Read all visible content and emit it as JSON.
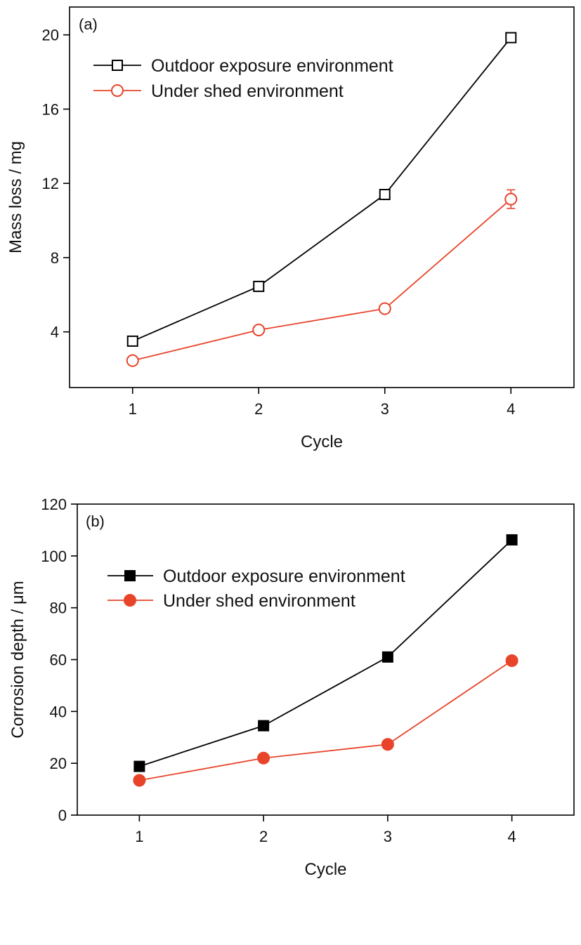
{
  "chart_data": [
    {
      "type": "line",
      "panel_label": "(a)",
      "xlabel": "Cycle",
      "ylabel": "Mass loss / mg",
      "x": [
        1,
        2,
        3,
        4
      ],
      "xticks": [
        "1",
        "2",
        "3",
        "4"
      ],
      "xlim": [
        0.5,
        4.5
      ],
      "ylim": [
        1,
        21.5
      ],
      "yticks": [
        "4",
        "8",
        "12",
        "16",
        "20"
      ],
      "yticks_values": [
        4,
        8,
        12,
        16,
        20
      ],
      "grid": false,
      "legend_position": "top-left",
      "series": [
        {
          "name": "Outdoor exposure environment",
          "values": [
            3.5,
            6.45,
            11.4,
            19.85
          ],
          "errors": [
            0.25,
            0.2,
            0.25,
            0.2
          ],
          "color": "#000000",
          "marker": "square",
          "marker_filled": false
        },
        {
          "name": "Under shed environment",
          "values": [
            2.45,
            4.1,
            5.25,
            11.15
          ],
          "errors": [
            0.2,
            0.2,
            0.2,
            0.5
          ],
          "color": "#e8442a",
          "marker": "circle",
          "marker_filled": false
        }
      ]
    },
    {
      "type": "line",
      "panel_label": "(b)",
      "xlabel": "Cycle",
      "ylabel": "Corrosion depth / μm",
      "x": [
        1,
        2,
        3,
        4
      ],
      "xticks": [
        "1",
        "2",
        "3",
        "4"
      ],
      "xlim": [
        0.5,
        4.5
      ],
      "ylim": [
        0,
        120
      ],
      "yticks": [
        "0",
        "20",
        "40",
        "60",
        "80",
        "100",
        "120"
      ],
      "yticks_values": [
        0,
        20,
        40,
        60,
        80,
        100,
        120
      ],
      "grid": false,
      "legend_position": "top-left",
      "series": [
        {
          "name": "Outdoor exposure environment",
          "values": [
            18.8,
            34.5,
            61,
            106.2
          ],
          "errors": [
            1.2,
            1.2,
            1.5,
            1.2
          ],
          "color": "#000000",
          "marker": "square",
          "marker_filled": true
        },
        {
          "name": "Under shed environment",
          "values": [
            13.4,
            22,
            27.3,
            59.6
          ],
          "errors": [
            1,
            1,
            1.2,
            1.2
          ],
          "color": "#e8442a",
          "marker": "circle",
          "marker_filled": true
        }
      ]
    }
  ]
}
